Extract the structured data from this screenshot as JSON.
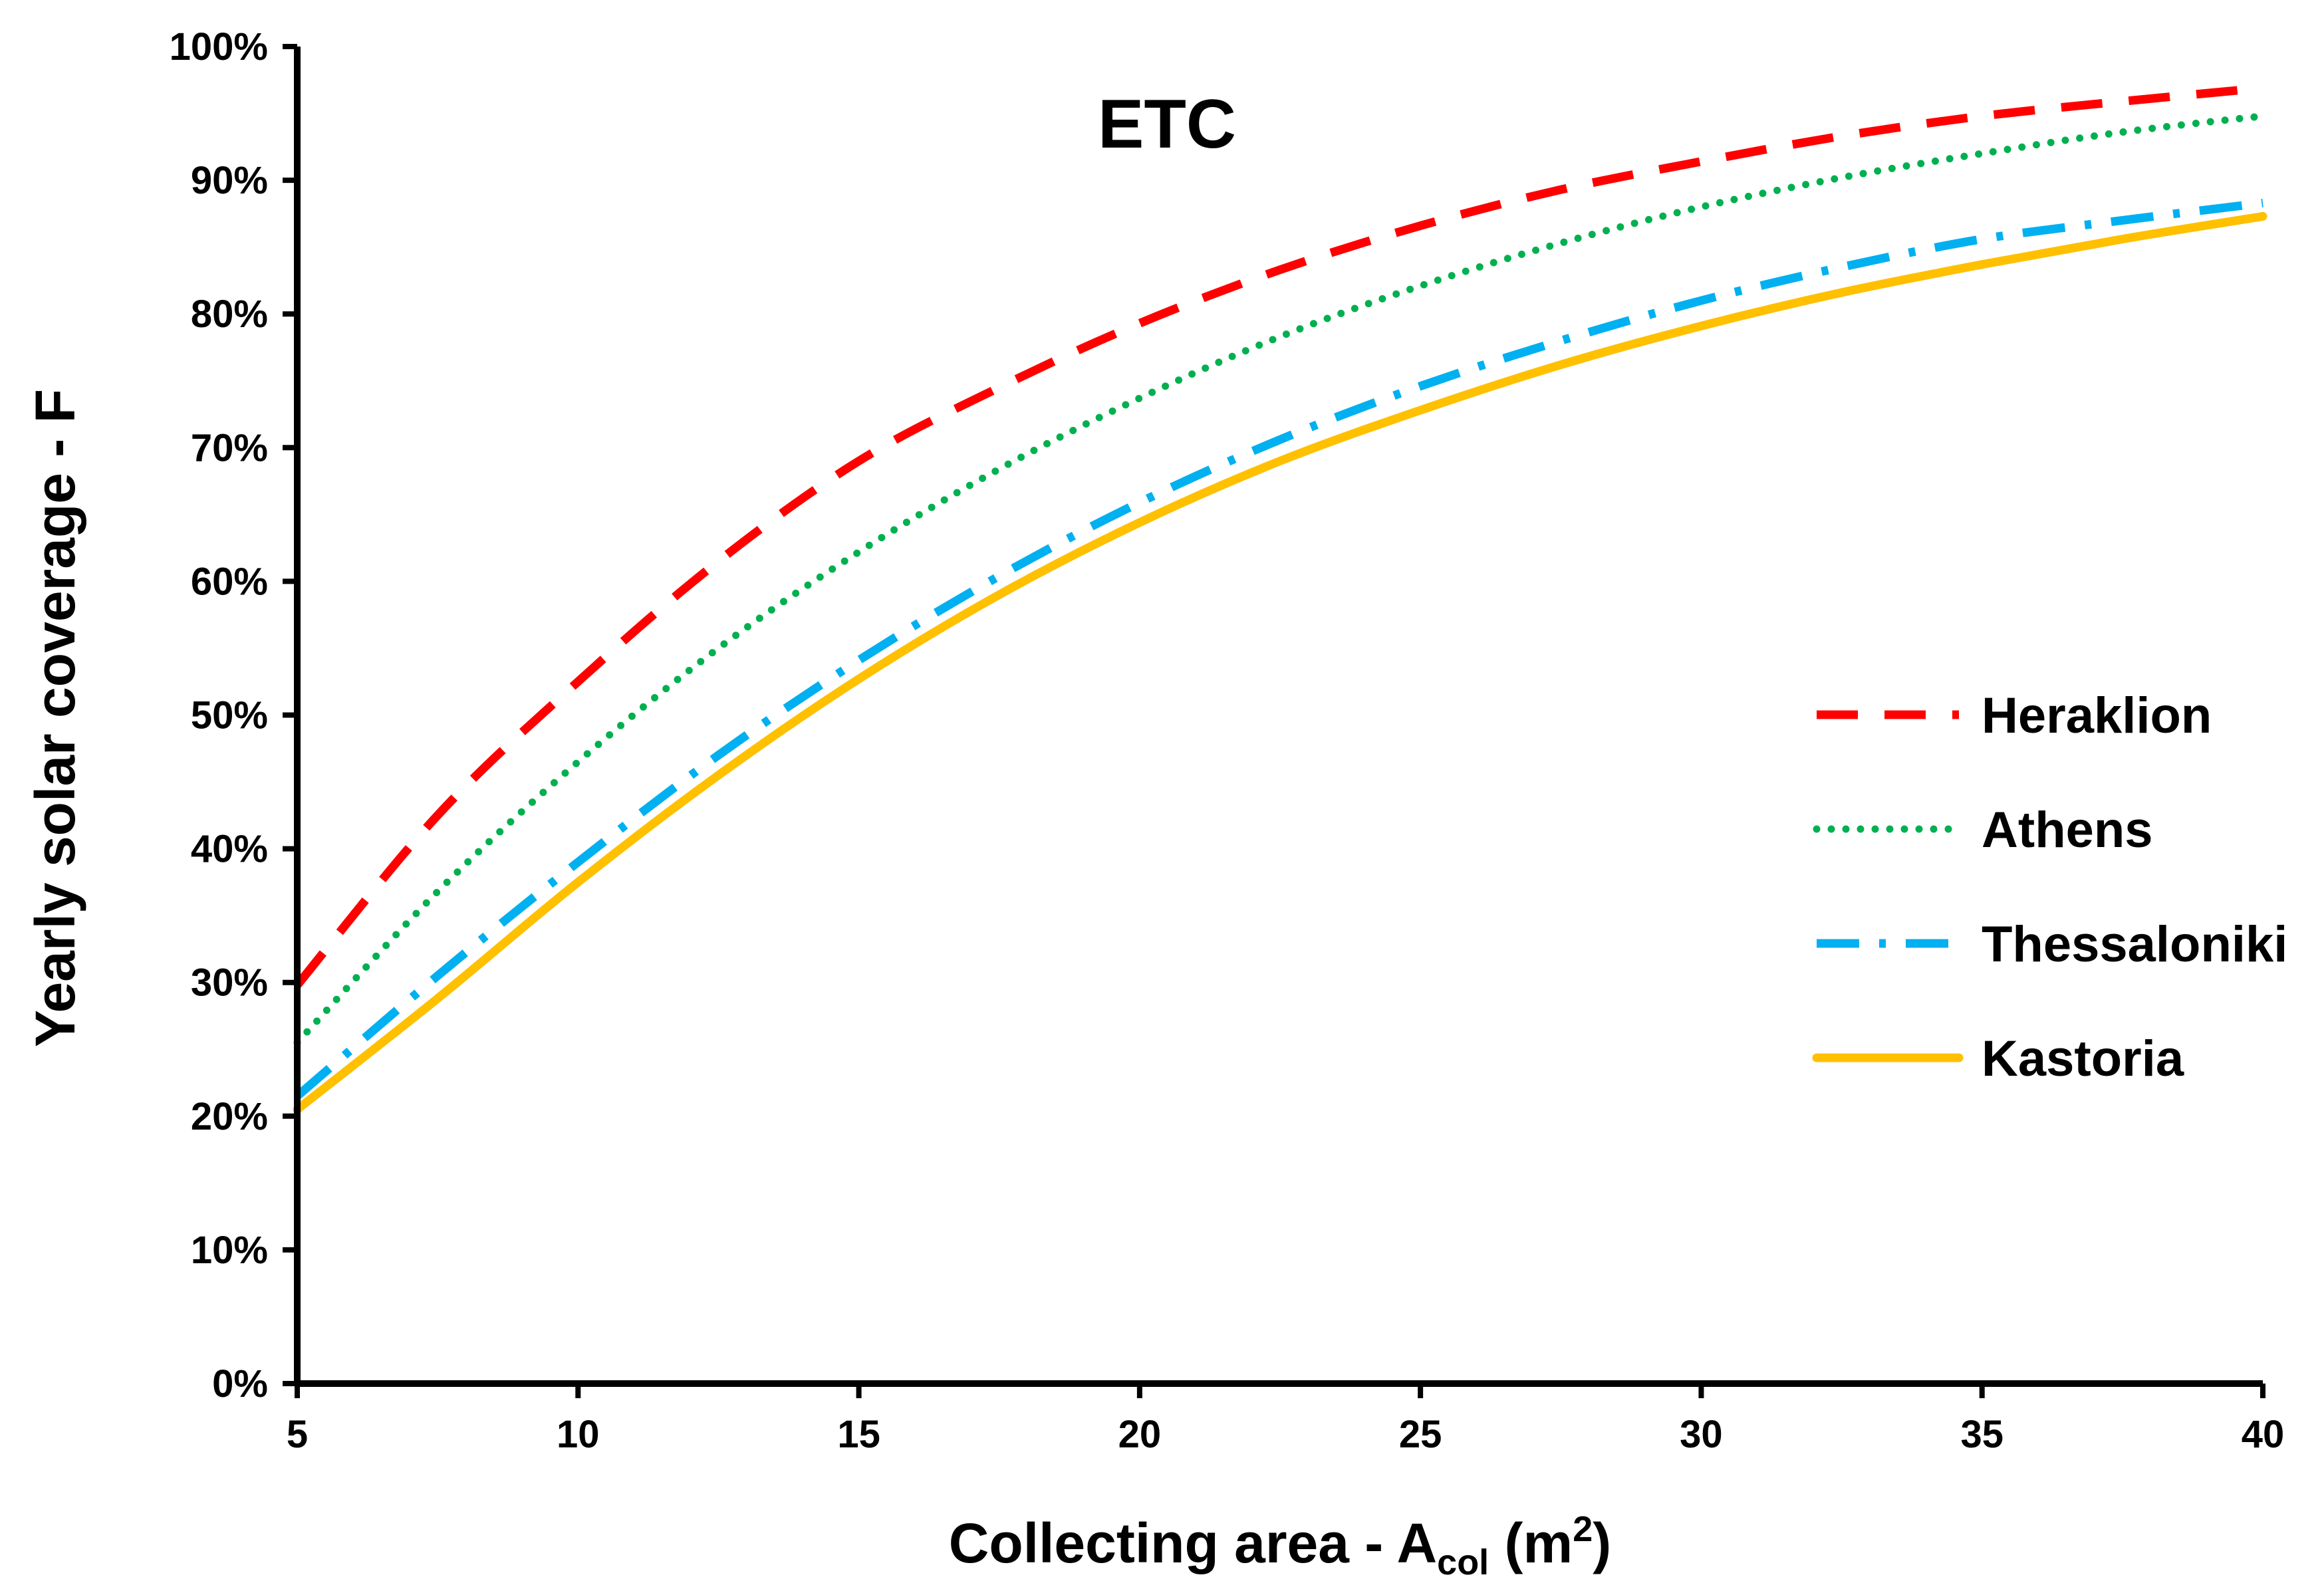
{
  "chart_data": {
    "type": "line",
    "title": "ETC",
    "ylabel": "Yearly solar coverage - F",
    "xlabel": {
      "prefix": "Collecting area - A",
      "subscript": "col",
      "unit_open": " (m",
      "superscript": "2",
      "unit_close": ")"
    },
    "xlim": [
      5,
      40
    ],
    "ylim": [
      0,
      100
    ],
    "x_ticks": [
      5,
      10,
      15,
      20,
      25,
      30,
      35,
      40
    ],
    "x_tick_labels": [
      "5",
      "10",
      "15",
      "20",
      "25",
      "30",
      "35",
      "40"
    ],
    "y_ticks": [
      0,
      10,
      20,
      30,
      40,
      50,
      60,
      70,
      80,
      90,
      100
    ],
    "y_tick_labels": [
      "0%",
      "10%",
      "20%",
      "30%",
      "40%",
      "50%",
      "60%",
      "70%",
      "80%",
      "90%",
      "100%"
    ],
    "grid": false,
    "legend_position": "right",
    "x": [
      5,
      7.5,
      10,
      12.5,
      15,
      17.5,
      20,
      22.5,
      25,
      27.5,
      30,
      32.5,
      35,
      37.5,
      40
    ],
    "series": [
      {
        "name": "Heraklion",
        "color": "#ff0000",
        "style": "dashed",
        "values": [
          29.8,
          42.5,
          52.5,
          61.5,
          69.0,
          74.5,
          79.3,
          83.3,
          86.6,
          89.3,
          91.4,
          93.3,
          94.8,
          95.9,
          96.9
        ]
      },
      {
        "name": "Athens",
        "color": "#00b050",
        "style": "dotted",
        "values": [
          25.5,
          36.8,
          46.5,
          55.0,
          62.2,
          68.4,
          73.7,
          78.3,
          82.1,
          85.3,
          88.0,
          90.2,
          92.0,
          93.6,
          94.8
        ]
      },
      {
        "name": "Thessaloniki",
        "color": "#00b0f0",
        "style": "dashdot",
        "values": [
          21.5,
          30.5,
          39.0,
          47.0,
          54.1,
          60.4,
          65.9,
          70.6,
          74.6,
          78.0,
          81.0,
          83.5,
          85.6,
          87.0,
          88.3
        ]
      },
      {
        "name": "Kastoria",
        "color": "#ffc000",
        "style": "solid",
        "values": [
          20.5,
          28.8,
          37.5,
          45.5,
          52.7,
          59.0,
          64.4,
          69.0,
          72.8,
          76.2,
          79.1,
          81.6,
          83.7,
          85.6,
          87.3
        ]
      }
    ]
  }
}
